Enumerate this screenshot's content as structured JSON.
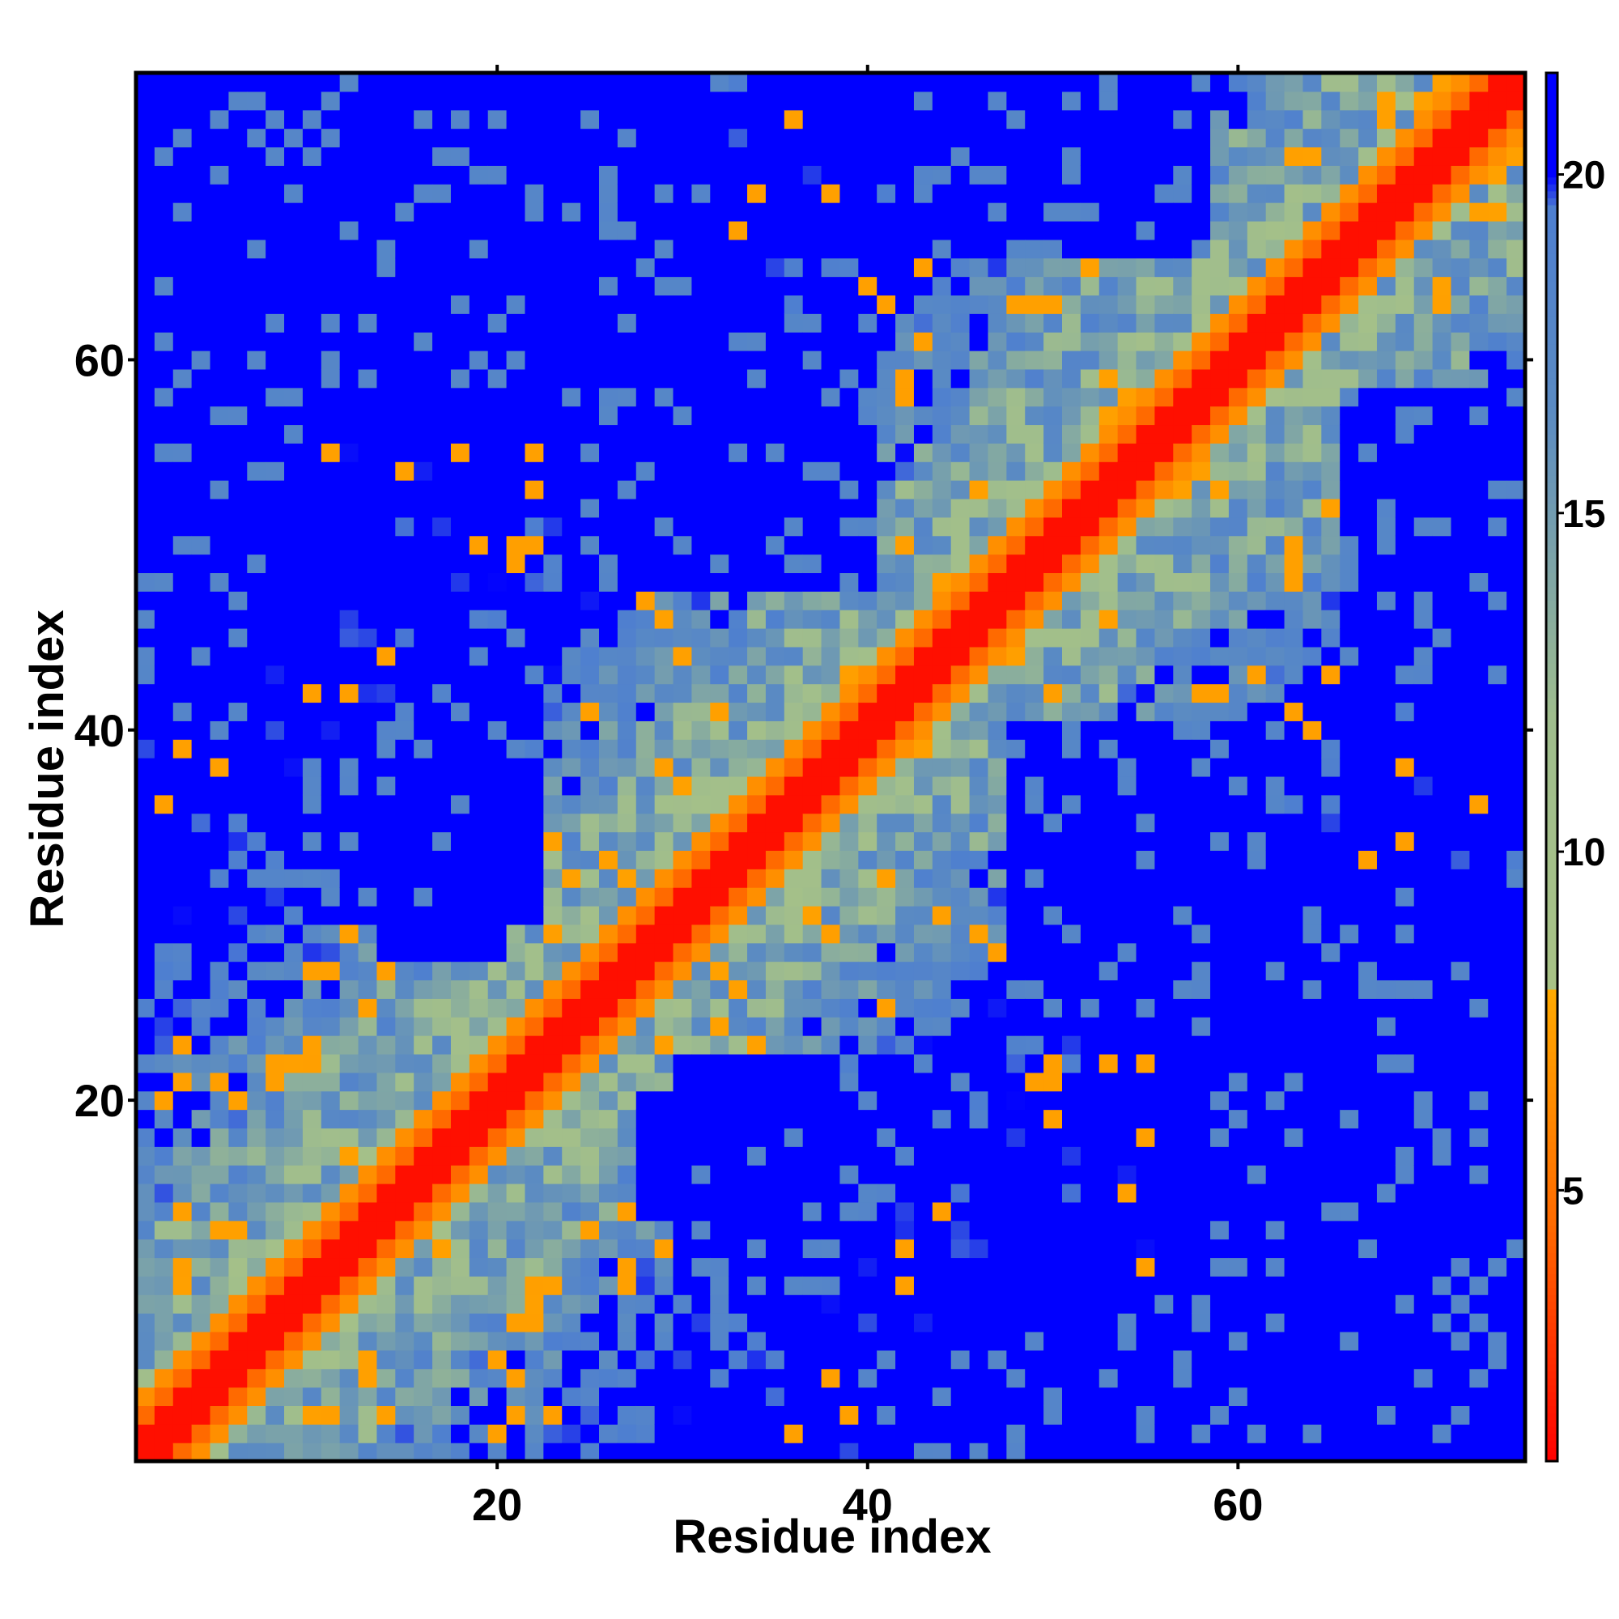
{
  "chart_data": {
    "type": "heatmap",
    "description_of_values": "symmetric residue-residue distance map",
    "x": {
      "label": "Residue index",
      "range": [
        1,
        75
      ],
      "ticks": [
        20,
        40,
        60
      ]
    },
    "y": {
      "label": "Residue index",
      "range": [
        1,
        75
      ],
      "ticks": [
        20,
        40,
        60
      ]
    },
    "n_residues": 75,
    "colorbar": {
      "ticks": [
        5,
        10,
        15,
        20
      ],
      "range": [
        1,
        21.5
      ],
      "stops": [
        {
          "value": 1,
          "color": "#ff0000"
        },
        {
          "value": 4.5,
          "color": "#ff6a00"
        },
        {
          "value": 8,
          "color": "#ffaa00"
        },
        {
          "value": 8.01,
          "color": "#a8c286"
        },
        {
          "value": 12,
          "color": "#9fbd8d"
        },
        {
          "value": 16.5,
          "color": "#5b8bc2"
        },
        {
          "value": 19.5,
          "color": "#4e7fd0"
        },
        {
          "value": 20,
          "color": "#0000ff"
        },
        {
          "value": 21.5,
          "color": "#0000ff"
        }
      ]
    },
    "structure_blocks": [
      {
        "i": [
          1,
          14
        ],
        "j": [
          62,
          75
        ],
        "value": 21
      },
      {
        "i": [
          14,
          28
        ],
        "j": [
          60,
          75
        ],
        "value": 21
      },
      {
        "i": [
          30,
          40
        ],
        "j": [
          50,
          62
        ],
        "value": 21
      },
      {
        "i": [
          1,
          6
        ],
        "j": [
          40,
          75
        ],
        "value": 21
      },
      {
        "i": [
          45,
          75
        ],
        "j": [
          1,
          10
        ],
        "value": 21
      },
      {
        "i": [
          56,
          75
        ],
        "j": [
          1,
          32
        ],
        "value": 21
      },
      {
        "i": [
          48,
          58
        ],
        "j": [
          24,
          40
        ],
        "value": 21
      },
      {
        "i": [
          66,
          75
        ],
        "j": [
          42,
          58
        ],
        "value": 21
      },
      {
        "i": [
          30,
          38
        ],
        "j": [
          10,
          22
        ],
        "value": 21
      },
      {
        "i": [
          14,
          20
        ],
        "j": [
          28,
          40
        ],
        "value": 21
      }
    ]
  }
}
